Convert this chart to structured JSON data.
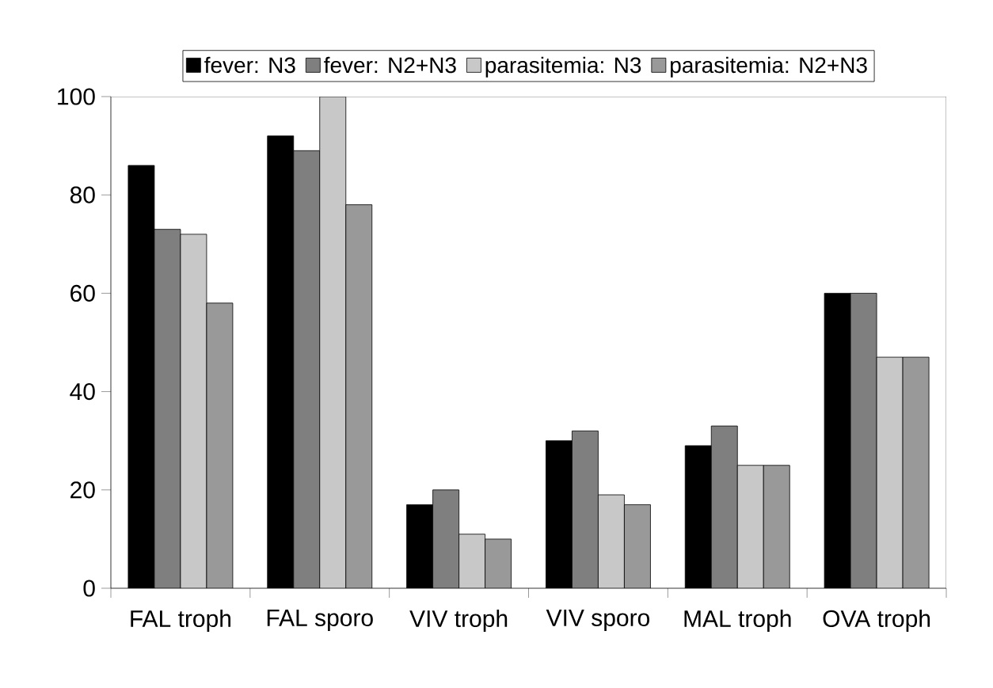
{
  "chart_data": {
    "type": "bar",
    "categories": [
      "FAL troph",
      "FAL sporo",
      "VIV troph",
      "VIV sporo",
      "MAL troph",
      "OVA troph"
    ],
    "series": [
      {
        "name": "fever: N3",
        "color": "#000000",
        "values": [
          86,
          92,
          17,
          30,
          29,
          60
        ]
      },
      {
        "name": "fever: N2+N3",
        "color": "#7f7f7f",
        "values": [
          73,
          89,
          20,
          32,
          33,
          60
        ]
      },
      {
        "name": "parasitemia: N3",
        "color": "#c8c8c8",
        "values": [
          72,
          100,
          11,
          19,
          25,
          47
        ]
      },
      {
        "name": "parasitemia: N2+N3",
        "color": "#999999",
        "values": [
          58,
          78,
          10,
          17,
          25,
          47
        ]
      }
    ],
    "ylim": [
      0,
      100
    ],
    "yticks": [
      0,
      20,
      40,
      60,
      80,
      100
    ],
    "grid": false,
    "legend": "top"
  }
}
